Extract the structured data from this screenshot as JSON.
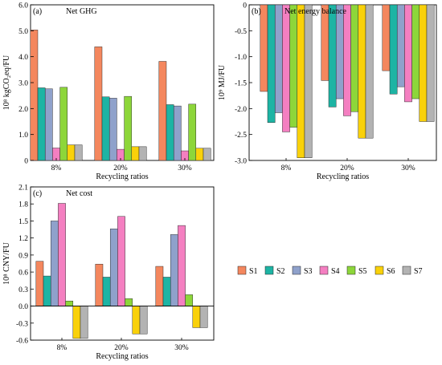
{
  "chart_data": [
    {
      "type": "bar",
      "panel_label": "(a)",
      "title": "Net GHG",
      "ylabel": "10⁸ kgCO₂eq/FU",
      "xlabel": "Recycling ratios",
      "categories": [
        "8%",
        "20%",
        "30%"
      ],
      "ylim": [
        0,
        6
      ],
      "yticks": [
        "0",
        "1.0",
        "2.0",
        "3.0",
        "4.0",
        "5.0",
        "6.0"
      ],
      "grid": false,
      "series": [
        {
          "name": "S1",
          "values": [
            5.03,
            4.38,
            3.82
          ]
        },
        {
          "name": "S2",
          "values": [
            2.8,
            2.45,
            2.15
          ]
        },
        {
          "name": "S3",
          "values": [
            2.76,
            2.4,
            2.1
          ]
        },
        {
          "name": "S4",
          "values": [
            0.48,
            0.43,
            0.37
          ]
        },
        {
          "name": "S5",
          "values": [
            2.82,
            2.47,
            2.17
          ]
        },
        {
          "name": "S6",
          "values": [
            0.6,
            0.53,
            0.47
          ]
        },
        {
          "name": "S7",
          "values": [
            0.6,
            0.53,
            0.47
          ]
        }
      ]
    },
    {
      "type": "bar",
      "panel_label": "(b)",
      "title": "Net energy balance",
      "ylabel": "10⁹ MJ/FU",
      "xlabel": "Recycling ratios",
      "categories": [
        "8%",
        "20%",
        "30%"
      ],
      "ylim": [
        -3,
        0
      ],
      "yticks": [
        "0",
        "-0.5",
        "-1.0",
        "-1.5",
        "-2.0",
        "-2.5",
        "-3.0"
      ],
      "grid": false,
      "series": [
        {
          "name": "S1",
          "values": [
            -1.67,
            -1.46,
            -1.27
          ]
        },
        {
          "name": "S2",
          "values": [
            -2.27,
            -1.97,
            -1.72
          ]
        },
        {
          "name": "S3",
          "values": [
            -2.08,
            -1.81,
            -1.58
          ]
        },
        {
          "name": "S4",
          "values": [
            -2.45,
            -2.14,
            -1.87
          ]
        },
        {
          "name": "S5",
          "values": [
            -2.36,
            -2.06,
            -1.81
          ]
        },
        {
          "name": "S6",
          "values": [
            -2.95,
            -2.57,
            -2.25
          ]
        },
        {
          "name": "S7",
          "values": [
            -2.95,
            -2.57,
            -2.25
          ]
        }
      ]
    },
    {
      "type": "bar",
      "panel_label": "(c)",
      "title": "Net cost",
      "ylabel": "10⁸ CNY/FU",
      "xlabel": "Recycling ratios",
      "categories": [
        "8%",
        "20%",
        "30%"
      ],
      "ylim": [
        -0.6,
        2.1
      ],
      "yticks": [
        "-0.6",
        "-0.3",
        "0.0",
        "0.3",
        "0.6",
        "0.9",
        "1.2",
        "1.5",
        "1.8",
        "2.1"
      ],
      "grid": false,
      "series": [
        {
          "name": "S1",
          "values": [
            0.79,
            0.74,
            0.7
          ]
        },
        {
          "name": "S2",
          "values": [
            0.53,
            0.51,
            0.51
          ]
        },
        {
          "name": "S3",
          "values": [
            1.5,
            1.36,
            1.26
          ]
        },
        {
          "name": "S4",
          "values": [
            1.81,
            1.58,
            1.42
          ]
        },
        {
          "name": "S5",
          "values": [
            0.09,
            0.13,
            0.2
          ]
        },
        {
          "name": "S6",
          "values": [
            -0.57,
            -0.49,
            -0.38
          ]
        },
        {
          "name": "S7",
          "values": [
            -0.57,
            -0.49,
            -0.38
          ]
        }
      ]
    }
  ],
  "legend": {
    "placement": "right of panel (c)",
    "items": [
      {
        "name": "S1",
        "color": "#F4875E"
      },
      {
        "name": "S2",
        "color": "#1DB4A4"
      },
      {
        "name": "S3",
        "color": "#8FA1CB"
      },
      {
        "name": "S4",
        "color": "#F47FC1"
      },
      {
        "name": "S5",
        "color": "#8DD63A"
      },
      {
        "name": "S6",
        "color": "#F9D10A"
      },
      {
        "name": "S7",
        "color": "#B3B3B3"
      }
    ]
  }
}
